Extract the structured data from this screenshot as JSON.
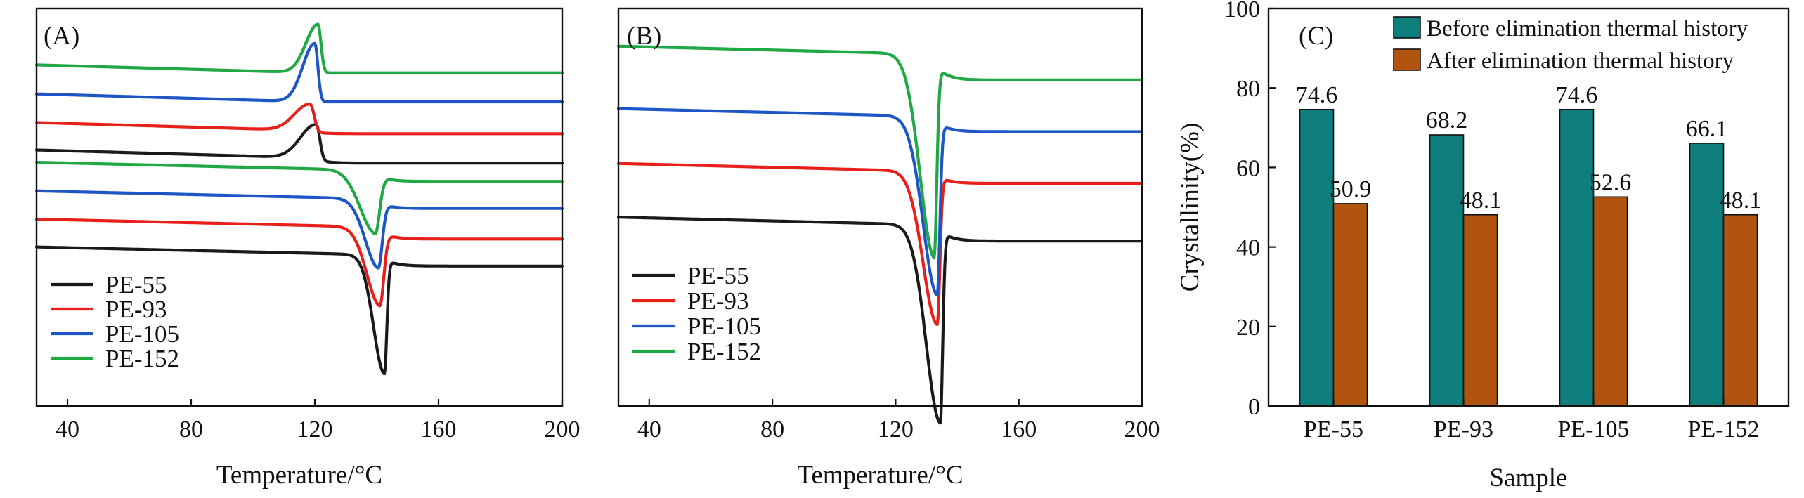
{
  "chart_data": [
    {
      "type": "line",
      "panel_label": "(A)",
      "xlabel": "Temperature/°C",
      "ylabel": "",
      "xlim": [
        30,
        200
      ],
      "xticks": [
        40,
        80,
        120,
        160,
        200
      ],
      "legend_position": "bottom-left",
      "y_units": "arbitrary (offset heat flow)",
      "series": [
        {
          "name": "PE-55",
          "color": "#1a1a1a",
          "segment": "cooling",
          "start": 0.624,
          "end": 0.611,
          "peak_T": 120.5,
          "peak_h": 0.09,
          "w_left": 7.0,
          "w_right": 1.6,
          "direction": "up"
        },
        {
          "name": "PE-93",
          "color": "#e8201c",
          "segment": "cooling",
          "start": 0.693,
          "end": 0.685,
          "peak_T": 118.5,
          "peak_h": 0.07,
          "w_left": 7.0,
          "w_right": 1.8,
          "direction": "up"
        },
        {
          "name": "PE-105",
          "color": "#1f56c6",
          "segment": "cooling",
          "start": 0.765,
          "end": 0.765,
          "peak_T": 120.0,
          "peak_h": 0.147,
          "w_left": 5.5,
          "w_right": 1.4,
          "direction": "up"
        },
        {
          "name": "PE-152",
          "color": "#1fa843",
          "segment": "cooling",
          "start": 0.838,
          "end": 0.838,
          "peak_T": 121.0,
          "peak_h": 0.122,
          "w_left": 5.5,
          "w_right": 1.4,
          "direction": "up"
        },
        {
          "name": "PE-55",
          "color": "#1a1a1a",
          "segment": "heating",
          "start": 0.38,
          "end": 0.352,
          "peak_T": 142.5,
          "peak_h": 0.285,
          "w_left": 5.0,
          "w_right": 1.1,
          "direction": "down"
        },
        {
          "name": "PE-93",
          "color": "#e8201c",
          "segment": "heating",
          "start": 0.45,
          "end": 0.42,
          "peak_T": 141.0,
          "peak_h": 0.183,
          "w_left": 6.0,
          "w_right": 1.8,
          "direction": "down"
        },
        {
          "name": "PE-105",
          "color": "#1f56c6",
          "segment": "heating",
          "start": 0.521,
          "end": 0.497,
          "peak_T": 140.5,
          "peak_h": 0.162,
          "w_left": 6.0,
          "w_right": 1.8,
          "direction": "down"
        },
        {
          "name": "PE-152",
          "color": "#1fa843",
          "segment": "heating",
          "start": 0.593,
          "end": 0.565,
          "peak_T": 139.5,
          "peak_h": 0.146,
          "w_left": 7.0,
          "w_right": 2.0,
          "direction": "down"
        }
      ],
      "legend": [
        {
          "name": "PE-55",
          "color": "#1a1a1a"
        },
        {
          "name": "PE-93",
          "color": "#e8201c"
        },
        {
          "name": "PE-105",
          "color": "#1f56c6"
        },
        {
          "name": "PE-152",
          "color": "#1fa843"
        }
      ]
    },
    {
      "type": "line",
      "panel_label": "(B)",
      "xlabel": "Temperature/°C",
      "ylabel": "",
      "xlim": [
        30,
        200
      ],
      "xticks": [
        40,
        80,
        120,
        160,
        200
      ],
      "legend_position": "bottom-left",
      "y_units": "arbitrary (offset heat flow)",
      "series": [
        {
          "name": "PE-55",
          "color": "#1a1a1a",
          "start": 0.455,
          "end": 0.415,
          "peak_T": 134.5,
          "peak_h": 0.478,
          "w_left": 6.5,
          "w_right": 1.1,
          "direction": "down"
        },
        {
          "name": "PE-93",
          "color": "#e8201c",
          "start": 0.59,
          "end": 0.56,
          "peak_T": 133.5,
          "peak_h": 0.37,
          "w_left": 6.5,
          "w_right": 1.2,
          "direction": "down"
        },
        {
          "name": "PE-105",
          "color": "#1f56c6",
          "start": 0.728,
          "end": 0.69,
          "peak_T": 133.5,
          "peak_h": 0.43,
          "w_left": 6.5,
          "w_right": 1.2,
          "direction": "down"
        },
        {
          "name": "PE-152",
          "color": "#1fa843",
          "start": 0.885,
          "end": 0.82,
          "peak_T": 132.5,
          "peak_h": 0.48,
          "w_left": 6.5,
          "w_right": 1.2,
          "direction": "down"
        }
      ],
      "legend": [
        {
          "name": "PE-55",
          "color": "#1a1a1a"
        },
        {
          "name": "PE-93",
          "color": "#e8201c"
        },
        {
          "name": "PE-105",
          "color": "#1f56c6"
        },
        {
          "name": "PE-152",
          "color": "#1fa843"
        }
      ]
    },
    {
      "type": "bar",
      "panel_label": "(C)",
      "xlabel": "Sample",
      "ylabel": "Crystallinity(%)",
      "ylim": [
        0,
        100
      ],
      "yticks": [
        0,
        20,
        40,
        60,
        80,
        100
      ],
      "categories": [
        "PE-55",
        "PE-93",
        "PE-105",
        "PE-152"
      ],
      "legend_position": "top-right",
      "series": [
        {
          "name": "Before elimination thermal history",
          "color": "#0f7f7d",
          "values": [
            74.6,
            68.2,
            74.6,
            66.1
          ],
          "labels": [
            "74.6",
            "68.2",
            "74.6",
            "66.1"
          ]
        },
        {
          "name": "After elimination thermal history",
          "color": "#b0540f",
          "values": [
            50.9,
            48.1,
            52.6,
            48.1
          ],
          "labels": [
            "50.9",
            "48.1",
            "52.6",
            "48.1"
          ]
        }
      ]
    }
  ]
}
